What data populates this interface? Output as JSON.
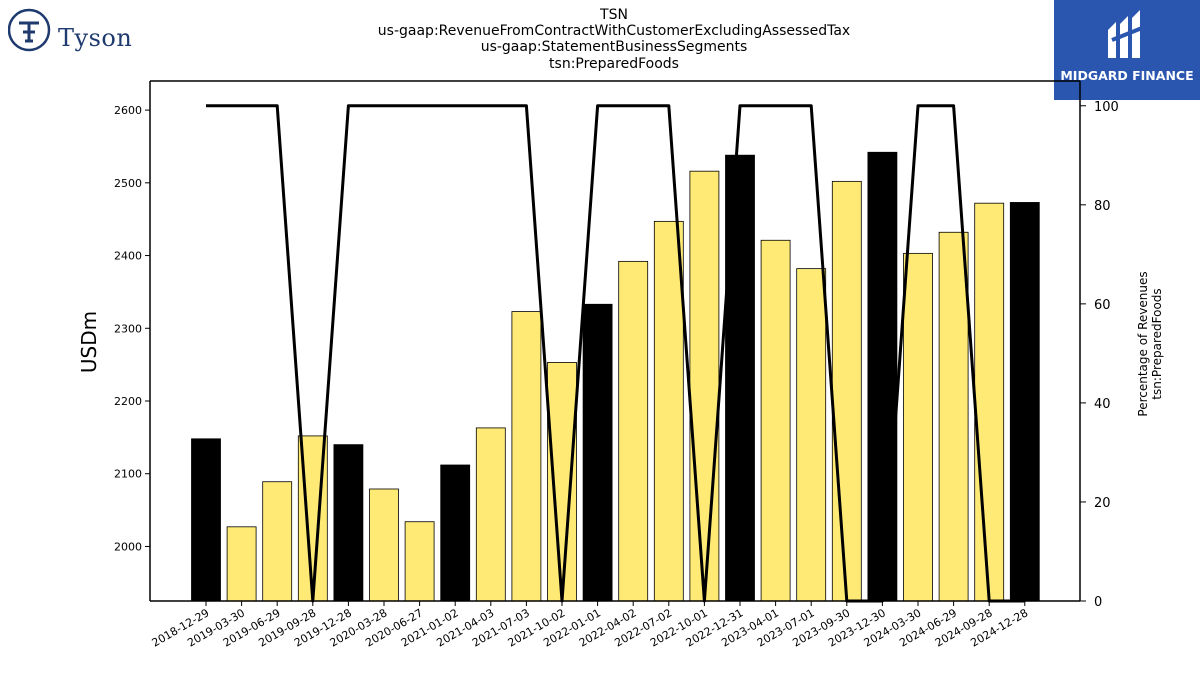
{
  "titles": {
    "line1": "TSN",
    "line2": "us-gaap:RevenueFromContractWithCustomerExcludingAssessedTax",
    "line3": "us-gaap:StatementBusinessSegments",
    "line4": "tsn:PreparedFoods"
  },
  "logos": {
    "left_brand": "Tyson",
    "right_brand": "MIDGARD FINANCE"
  },
  "chart_data": {
    "type": "bar",
    "ylabel": "USDm",
    "y2label_line1": "Percentage of Revenues",
    "y2label_line2": "tsn:PreparedFoods",
    "ylim": [
      1925,
      2640
    ],
    "y2lim": [
      0,
      105
    ],
    "yticks": [
      2000,
      2100,
      2200,
      2300,
      2400,
      2500,
      2600
    ],
    "y2ticks": [
      0,
      20,
      40,
      60,
      80,
      100
    ],
    "colors": {
      "annual_bar": "#000000",
      "quarter_bar": "#ffea75",
      "line": "#000000"
    },
    "categories": [
      "2018-12-29",
      "2019-03-30",
      "2019-06-29",
      "2019-09-28",
      "2019-12-28",
      "2020-03-28",
      "2020-06-27",
      "2021-01-02",
      "2021-04-03",
      "2021-07-03",
      "2021-10-02",
      "2022-01-01",
      "2022-04-02",
      "2022-07-02",
      "2022-10-01",
      "2022-12-31",
      "2023-04-01",
      "2023-07-01",
      "2023-09-30",
      "2023-12-30",
      "2024-03-30",
      "2024-06-29",
      "2024-09-28",
      "2024-12-28"
    ],
    "series": [
      {
        "type": "bar",
        "values": [
          2148,
          2027,
          2089,
          2152,
          2140,
          2079,
          2034,
          2112,
          2163,
          2323,
          2253,
          2333,
          2392,
          2447,
          2516,
          2538,
          2421,
          2382,
          2502,
          2542,
          2403,
          2432,
          2472,
          2473
        ],
        "highlight": [
          true,
          false,
          false,
          false,
          true,
          false,
          false,
          true,
          false,
          false,
          false,
          true,
          false,
          false,
          false,
          true,
          false,
          false,
          false,
          true,
          false,
          false,
          false,
          true
        ]
      },
      {
        "type": "line",
        "axis": "right",
        "values": [
          100,
          100,
          100,
          0,
          100,
          100,
          100,
          100,
          100,
          100,
          0,
          100,
          100,
          100,
          0,
          100,
          100,
          100,
          0,
          0,
          100,
          100,
          0,
          0
        ]
      }
    ]
  }
}
